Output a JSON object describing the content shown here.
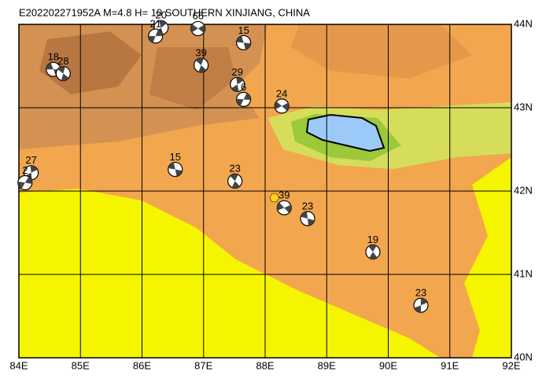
{
  "map": {
    "title": "E202202271952A M=4.8 H= 10 SOUTHERN XINJIANG, CHINA",
    "xlim": [
      84,
      92
    ],
    "ylim": [
      40,
      44
    ],
    "xticks": [
      {
        "value": 84,
        "label": "84E"
      },
      {
        "value": 85,
        "label": "85E"
      },
      {
        "value": 86,
        "label": "86E"
      },
      {
        "value": 87,
        "label": "87E"
      },
      {
        "value": 88,
        "label": "88E"
      },
      {
        "value": 89,
        "label": "89E"
      },
      {
        "value": 90,
        "label": "90E"
      },
      {
        "value": 91,
        "label": "91E"
      },
      {
        "value": 92,
        "label": "92E"
      }
    ],
    "yticks": [
      {
        "value": 40,
        "label": "40N"
      },
      {
        "value": 41,
        "label": "41N"
      },
      {
        "value": 42,
        "label": "42N"
      },
      {
        "value": 43,
        "label": "43N"
      },
      {
        "value": 44,
        "label": "44N"
      }
    ],
    "epicenter": {
      "lon": 88.15,
      "lat": 41.92
    },
    "events": [
      {
        "lon": 84.56,
        "lat": 43.46,
        "depth": 18
      },
      {
        "lon": 84.72,
        "lat": 43.41,
        "depth": 28
      },
      {
        "lon": 86.31,
        "lat": 43.96,
        "depth": 20
      },
      {
        "lon": 86.22,
        "lat": 43.86,
        "depth": 21
      },
      {
        "lon": 86.91,
        "lat": 43.95,
        "depth": 66
      },
      {
        "lon": 87.65,
        "lat": 43.78,
        "depth": 15
      },
      {
        "lon": 86.96,
        "lat": 43.51,
        "depth": 39
      },
      {
        "lon": 87.55,
        "lat": 43.28,
        "depth": 29
      },
      {
        "lon": 87.65,
        "lat": 43.1,
        "depth": 6
      },
      {
        "lon": 88.27,
        "lat": 43.02,
        "depth": 24
      },
      {
        "lon": 86.54,
        "lat": 42.26,
        "depth": 15
      },
      {
        "lon": 87.51,
        "lat": 42.12,
        "depth": 23
      },
      {
        "lon": 84.2,
        "lat": 42.22,
        "depth": 27
      },
      {
        "lon": 84.1,
        "lat": 42.1,
        "depth": 2
      },
      {
        "lon": 88.31,
        "lat": 41.8,
        "depth": 39
      },
      {
        "lon": 88.69,
        "lat": 41.67,
        "depth": 23
      },
      {
        "lon": 89.75,
        "lat": 41.27,
        "depth": 19
      },
      {
        "lon": 90.53,
        "lat": 40.63,
        "depth": 23
      }
    ]
  }
}
